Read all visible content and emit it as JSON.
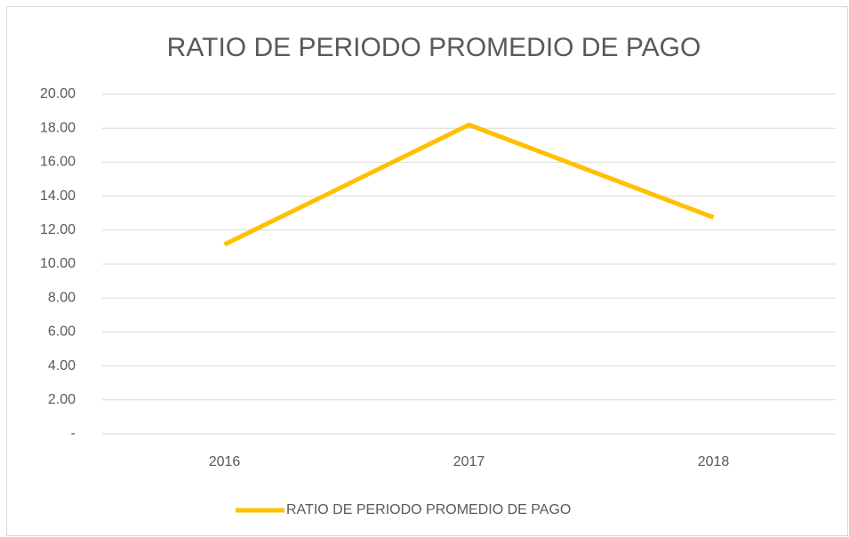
{
  "chart_data": {
    "type": "line",
    "title": "RATIO DE PERIODO PROMEDIO DE PAGO",
    "categories": [
      "2016",
      "2017",
      "2018"
    ],
    "series": [
      {
        "name": "RATIO DE PERIODO PROMEDIO DE PAGO",
        "color": "#ffc000",
        "values": [
          11.15,
          18.2,
          12.75
        ]
      }
    ],
    "ylim": [
      0,
      20
    ],
    "yticks": [
      {
        "value": 0,
        "label": "-"
      },
      {
        "value": 2,
        "label": "2.00"
      },
      {
        "value": 4,
        "label": "4.00"
      },
      {
        "value": 6,
        "label": "6.00"
      },
      {
        "value": 8,
        "label": "8.00"
      },
      {
        "value": 10,
        "label": "10.00"
      },
      {
        "value": 12,
        "label": "12.00"
      },
      {
        "value": 14,
        "label": "14.00"
      },
      {
        "value": 16,
        "label": "16.00"
      },
      {
        "value": 18,
        "label": "18.00"
      },
      {
        "value": 20,
        "label": "20.00"
      }
    ],
    "grid": true,
    "legend": "bottom"
  }
}
